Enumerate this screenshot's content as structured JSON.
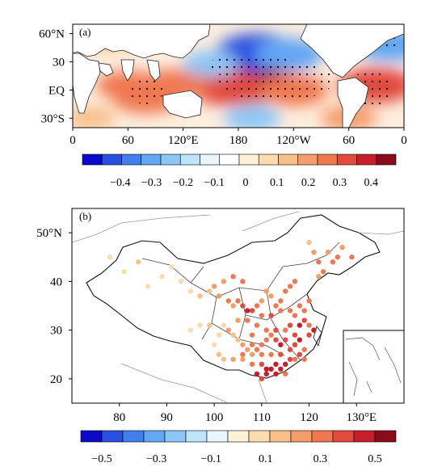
{
  "chart_data": [
    {
      "type": "heatmap",
      "panel_label": "(a)",
      "x_ticks": [
        "0",
        "60",
        "120°E",
        "180",
        "120°W",
        "60",
        "0"
      ],
      "y_ticks": [
        "60°N",
        "30",
        "EQ",
        "30°S"
      ],
      "xlim": [
        0,
        360
      ],
      "ylim": [
        -40,
        70
      ],
      "colorbar": {
        "colors": [
          "#0a0ac8",
          "#2a4fe0",
          "#3f7fee",
          "#62a6f4",
          "#8cc6f7",
          "#bfe3f8",
          "#e9f6fb",
          "#ffffff",
          "#fdf1d8",
          "#fbdcae",
          "#f8c08a",
          "#f59d6a",
          "#f07850",
          "#e24a3d",
          "#c81e2c",
          "#8b0a1a"
        ],
        "labels": [
          "−0.4",
          "−0.3",
          "−0.2",
          "−0.1",
          "0",
          "0.1",
          "0.2",
          "0.3",
          "0.4"
        ]
      },
      "regions": [
        {
          "lon": 195,
          "lat": 8,
          "value": 0.45
        },
        {
          "lon": 170,
          "lat": 2,
          "value": 0.35
        },
        {
          "lon": 240,
          "lat": 0,
          "value": 0.3
        },
        {
          "lon": 80,
          "lat": -8,
          "value": 0.3
        },
        {
          "lon": 60,
          "lat": 5,
          "value": 0.25
        },
        {
          "lon": 110,
          "lat": 5,
          "value": 0.3
        },
        {
          "lon": 330,
          "lat": 5,
          "value": 0.35
        },
        {
          "lon": 200,
          "lat": 40,
          "value": -0.4
        },
        {
          "lon": 235,
          "lat": 38,
          "value": -0.3
        },
        {
          "lon": 150,
          "lat": 28,
          "value": -0.2
        },
        {
          "lon": 345,
          "lat": 48,
          "value": -0.3
        },
        {
          "lon": 195,
          "lat": -30,
          "value": -0.2
        },
        {
          "lon": 300,
          "lat": -30,
          "value": 0.2
        },
        {
          "lon": 40,
          "lat": 55,
          "value": 0.15
        },
        {
          "lon": 20,
          "lat": -30,
          "value": 0.15
        }
      ]
    },
    {
      "type": "scatter",
      "panel_label": "(b)",
      "x_ticks": [
        "80",
        "90",
        "100",
        "110",
        "120",
        "130°E"
      ],
      "y_ticks": [
        "50°N",
        "40",
        "30",
        "20"
      ],
      "xlim": [
        70,
        140
      ],
      "ylim": [
        15,
        55
      ],
      "colorbar": {
        "colors": [
          "#0a0ac8",
          "#2a4fe0",
          "#3f7fee",
          "#62a6f4",
          "#8cc6f7",
          "#bfe3f8",
          "#e9f6fb",
          "#fdf1d8",
          "#fbdcae",
          "#f8c08a",
          "#f59d6a",
          "#f07850",
          "#e24a3d",
          "#c81e2c",
          "#8b0a1a"
        ],
        "labels": [
          "−0.5",
          "−0.3",
          "−0.1",
          "0.1",
          "0.3",
          "0.5"
        ]
      },
      "points": [
        [
          122,
          41,
          0.25
        ],
        [
          123,
          42,
          0.3
        ],
        [
          125,
          44,
          0.35
        ],
        [
          126,
          45,
          0.3
        ],
        [
          124,
          46,
          0.2
        ],
        [
          121,
          46,
          0.2
        ],
        [
          120,
          48,
          0.15
        ],
        [
          127,
          47,
          0.25
        ],
        [
          129,
          45,
          0.3
        ],
        [
          122,
          44,
          0.3
        ],
        [
          117,
          40,
          0.3
        ],
        [
          116,
          39,
          0.35
        ],
        [
          115,
          38,
          0.3
        ],
        [
          114,
          36,
          0.35
        ],
        [
          113,
          35,
          0.3
        ],
        [
          112,
          37,
          0.25
        ],
        [
          111,
          38,
          0.2
        ],
        [
          110,
          36,
          0.25
        ],
        [
          109,
          35,
          0.3
        ],
        [
          108,
          34,
          0.4
        ],
        [
          107,
          34,
          0.45
        ],
        [
          106,
          35,
          0.4
        ],
        [
          105,
          36,
          0.3
        ],
        [
          104,
          35,
          0.25
        ],
        [
          103,
          36,
          0.3
        ],
        [
          101,
          37,
          0.2
        ],
        [
          99,
          38,
          0.15
        ],
        [
          97,
          37,
          0.15
        ],
        [
          95,
          38,
          0.1
        ],
        [
          93,
          40,
          0.1
        ],
        [
          89,
          41,
          0.1
        ],
        [
          86,
          39,
          0.1
        ],
        [
          81,
          42,
          0.1
        ],
        [
          78,
          45,
          0.1
        ],
        [
          84,
          44,
          0.15
        ],
        [
          91,
          43,
          0.1
        ],
        [
          100,
          39,
          0.2
        ],
        [
          102,
          40,
          0.25
        ],
        [
          104,
          41,
          0.3
        ],
        [
          106,
          40,
          0.35
        ],
        [
          116,
          31,
          0.4
        ],
        [
          118,
          31,
          0.45
        ],
        [
          119,
          32,
          0.4
        ],
        [
          120,
          31,
          0.35
        ],
        [
          121,
          30,
          0.45
        ],
        [
          120,
          29,
          0.4
        ],
        [
          118,
          28,
          0.45
        ],
        [
          117,
          29,
          0.4
        ],
        [
          115,
          28,
          0.4
        ],
        [
          114,
          27,
          0.45
        ],
        [
          113,
          28,
          0.4
        ],
        [
          112,
          29,
          0.35
        ],
        [
          111,
          28,
          0.3
        ],
        [
          110,
          27,
          0.35
        ],
        [
          109,
          26,
          0.3
        ],
        [
          108,
          27,
          0.3
        ],
        [
          107,
          26,
          0.25
        ],
        [
          106,
          27,
          0.2
        ],
        [
          105,
          28,
          0.15
        ],
        [
          104,
          29,
          0.15
        ],
        [
          103,
          30,
          0.2
        ],
        [
          102,
          31,
          0.1
        ],
        [
          101,
          29,
          0.1
        ],
        [
          99,
          31,
          0.15
        ],
        [
          97,
          31,
          0.1
        ],
        [
          95,
          30,
          0.1
        ],
        [
          100,
          27,
          0.1
        ],
        [
          101,
          25,
          0.15
        ],
        [
          102,
          24,
          0.15
        ],
        [
          104,
          24,
          0.2
        ],
        [
          106,
          24,
          0.25
        ],
        [
          108,
          23,
          0.3
        ],
        [
          110,
          23,
          0.4
        ],
        [
          111,
          22,
          0.45
        ],
        [
          112,
          22,
          0.5
        ],
        [
          113,
          23,
          0.5
        ],
        [
          114,
          22,
          0.45
        ],
        [
          115,
          23,
          0.45
        ],
        [
          116,
          24,
          0.4
        ],
        [
          117,
          24,
          0.35
        ],
        [
          118,
          25,
          0.4
        ],
        [
          119,
          26,
          0.35
        ],
        [
          119,
          24,
          0.3
        ],
        [
          116,
          26,
          0.4
        ],
        [
          114,
          25,
          0.4
        ],
        [
          112,
          25,
          0.35
        ],
        [
          110,
          25,
          0.3
        ],
        [
          108,
          25,
          0.25
        ],
        [
          106,
          25,
          0.3
        ],
        [
          109,
          21,
          0.5
        ],
        [
          110,
          20,
          0.4
        ],
        [
          111,
          21,
          0.45
        ],
        [
          113,
          21,
          0.45
        ],
        [
          115,
          21,
          0.35
        ],
        [
          117,
          27,
          0.4
        ],
        [
          115,
          30,
          0.35
        ],
        [
          113,
          30,
          0.4
        ],
        [
          111,
          30,
          0.35
        ],
        [
          109,
          31,
          0.3
        ],
        [
          107,
          32,
          0.3
        ],
        [
          105,
          32,
          0.25
        ],
        [
          108,
          29,
          0.3
        ],
        [
          110,
          33,
          0.35
        ],
        [
          112,
          33,
          0.4
        ],
        [
          114,
          34,
          0.35
        ],
        [
          116,
          34,
          0.35
        ],
        [
          118,
          35,
          0.3
        ],
        [
          120,
          36,
          0.3
        ],
        [
          119,
          34,
          0.35
        ],
        [
          117,
          33,
          0.35
        ]
      ]
    }
  ]
}
